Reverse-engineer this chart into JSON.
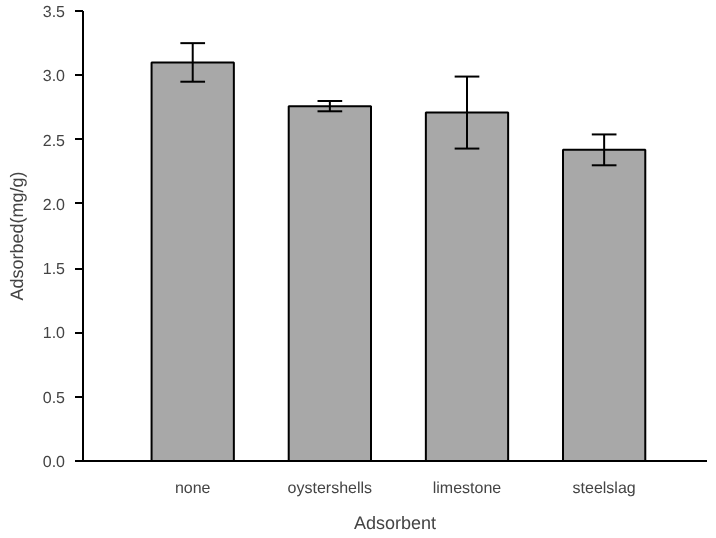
{
  "chart_data": {
    "type": "bar",
    "xlabel": "Adsorbent",
    "ylabel": "Adsorbed(mg/g)",
    "categories": [
      "none",
      "oystershells",
      "limestone",
      "steelslag"
    ],
    "values": [
      3.1,
      2.76,
      2.71,
      2.42
    ],
    "errors": [
      0.15,
      0.04,
      0.28,
      0.12
    ],
    "color": "#a8a8a8",
    "ylim": [
      0,
      3.5
    ],
    "yticks": [
      {
        "value": 0,
        "label": "0.0"
      },
      {
        "value": 0.5,
        "label": "0.5"
      },
      {
        "value": 1,
        "label": "1.0"
      },
      {
        "value": 1.5,
        "label": "1.5"
      },
      {
        "value": 2,
        "label": "2.0"
      },
      {
        "value": 2.5,
        "label": "2.5"
      },
      {
        "value": 3,
        "label": "3.0"
      },
      {
        "value": 3.5,
        "label": "3.5"
      }
    ],
    "grid": false
  }
}
